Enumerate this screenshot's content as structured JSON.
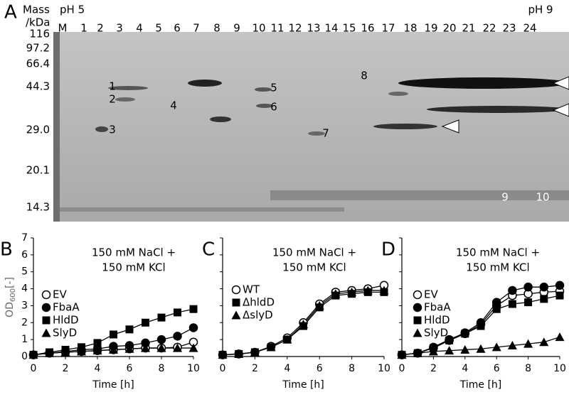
{
  "gel": {
    "label": "A",
    "mass_header": "Mass",
    "ph_left": "pH 5",
    "unit": "/kDa",
    "ph_right": "pH 9",
    "lanes": [
      "M",
      "1",
      "2",
      "3",
      "4",
      "5",
      "6",
      "7",
      "8",
      "9",
      "10",
      "11",
      "12",
      "13",
      "14",
      "15",
      "16",
      "17",
      "18",
      "19",
      "20",
      "21",
      "22",
      "23",
      "24"
    ],
    "mass_markers": [
      "116",
      "97.2",
      "66.4",
      "44.3",
      "29.0",
      "20.1",
      "14.3"
    ],
    "band_labels": [
      "1",
      "2",
      "3",
      "4",
      "5",
      "6",
      "7",
      "8",
      "9",
      "10"
    ]
  },
  "chart_data": [
    {
      "type": "line",
      "panel": "B",
      "annotation": [
        "150 mM NaCl +",
        "150 mM KCl"
      ],
      "ylabel_parts": [
        "OD",
        "600",
        "[-]"
      ],
      "xlabel": "Time [h]",
      "x": [
        0,
        1,
        2,
        3,
        4,
        5,
        6,
        7,
        8,
        9,
        10
      ],
      "xlim": [
        0,
        10
      ],
      "xticks": [
        0,
        2,
        4,
        6,
        8,
        10
      ],
      "ylim": [
        0,
        7
      ],
      "yticks": [
        0,
        1,
        2,
        3,
        4,
        5,
        6,
        7
      ],
      "ytick_labels": true,
      "series": [
        {
          "name": "EV",
          "color": "#000000",
          "marker": "open-circle",
          "values": [
            0.1,
            0.2,
            0.25,
            0.3,
            0.35,
            0.4,
            0.45,
            0.5,
            0.5,
            0.55,
            0.85
          ]
        },
        {
          "name": "FbaA",
          "color": "#000000",
          "marker": "circle",
          "values": [
            0.1,
            0.2,
            0.3,
            0.4,
            0.45,
            0.6,
            0.65,
            0.8,
            1.0,
            1.2,
            1.7
          ]
        },
        {
          "name": "HldD",
          "color": "#000000",
          "marker": "square",
          "values": [
            0.1,
            0.25,
            0.4,
            0.55,
            0.8,
            1.3,
            1.6,
            2.0,
            2.3,
            2.6,
            2.8
          ]
        },
        {
          "name": "SlyD",
          "color": "#000000",
          "marker": "triangle",
          "values": [
            0.1,
            0.2,
            0.25,
            0.3,
            0.35,
            0.4,
            0.45,
            0.5,
            0.5,
            0.5,
            0.5
          ]
        }
      ]
    },
    {
      "type": "line",
      "panel": "C",
      "annotation": [
        "150 mM NaCl +",
        "150 mM KCl"
      ],
      "xlabel": "Time [h]",
      "x": [
        0,
        1,
        2,
        3,
        4,
        5,
        6,
        7,
        8,
        9,
        10
      ],
      "xlim": [
        0,
        10
      ],
      "xticks": [
        0,
        2,
        4,
        6,
        8,
        10
      ],
      "ylim": [
        0,
        7
      ],
      "yticks": [
        0,
        1,
        2,
        3,
        4,
        5,
        6,
        7
      ],
      "ytick_labels": false,
      "series": [
        {
          "name": "WT",
          "color": "#000000",
          "marker": "open-circle",
          "values": [
            0.1,
            0.15,
            0.25,
            0.6,
            1.1,
            2.0,
            3.1,
            3.8,
            3.9,
            4.0,
            4.2
          ]
        },
        {
          "name": "ΔhldD",
          "color": "#000000",
          "marker": "square",
          "values": [
            0.1,
            0.15,
            0.25,
            0.55,
            1.0,
            1.8,
            2.9,
            3.6,
            3.7,
            3.8,
            3.8
          ]
        },
        {
          "name": "ΔslyD",
          "color": "#000000",
          "marker": "triangle",
          "values": [
            0.1,
            0.15,
            0.25,
            0.55,
            1.0,
            1.9,
            3.0,
            3.7,
            3.8,
            3.9,
            3.9
          ]
        }
      ]
    },
    {
      "type": "line",
      "panel": "D",
      "annotation": [
        "150 mM NaCl +",
        "150 mM KCl"
      ],
      "xlabel": "Time [h]",
      "x": [
        0,
        1,
        2,
        3,
        4,
        5,
        6,
        7,
        8,
        9,
        10
      ],
      "xlim": [
        0,
        10
      ],
      "xticks": [
        0,
        2,
        4,
        6,
        8,
        10
      ],
      "ylim": [
        0,
        7
      ],
      "yticks": [
        0,
        1,
        2,
        3,
        4,
        5,
        6,
        7
      ],
      "ytick_labels": false,
      "series": [
        {
          "name": "EV",
          "color": "#000000",
          "marker": "open-circle",
          "values": [
            0.1,
            0.2,
            0.5,
            0.95,
            1.35,
            1.9,
            3.0,
            3.6,
            3.7,
            3.8,
            3.85
          ]
        },
        {
          "name": "FbaA",
          "color": "#000000",
          "marker": "circle",
          "values": [
            0.1,
            0.2,
            0.55,
            1.0,
            1.4,
            2.0,
            3.2,
            3.9,
            4.1,
            4.1,
            4.2
          ]
        },
        {
          "name": "HldD",
          "color": "#000000",
          "marker": "square",
          "values": [
            0.1,
            0.2,
            0.5,
            0.95,
            1.35,
            1.8,
            2.8,
            3.1,
            3.2,
            3.4,
            3.6
          ]
        },
        {
          "name": "SlyD",
          "color": "#000000",
          "marker": "triangle",
          "values": [
            0.1,
            0.2,
            0.3,
            0.35,
            0.4,
            0.45,
            0.55,
            0.65,
            0.75,
            0.85,
            1.15
          ]
        }
      ]
    }
  ]
}
